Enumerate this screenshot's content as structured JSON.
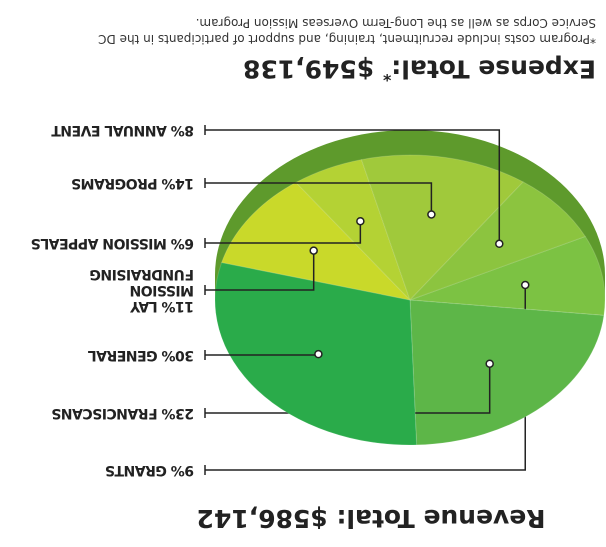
{
  "chart_data": {
    "type": "pie",
    "revenue_title": "Revenue Total: $586,142",
    "expense_label": "Expense Total:",
    "expense_marker": "*",
    "expense_value": "$549,138",
    "footnote": [
      "*Program costs include recruitment, training, and support of participants in the DC",
      "Service Corps as well as the Long-Term Overseas Mission Program."
    ],
    "categories": [
      "GRANTS",
      "FRANCISCANS",
      "GENERAL",
      "LAY MISSION FUNDRAISING",
      "MISSION APPEALS",
      "PROGRAMS",
      "ANNUAL EVENT"
    ],
    "values": [
      9,
      23,
      30,
      11,
      6,
      14,
      8
    ],
    "value_labels": [
      "9%",
      "23%",
      "30%",
      "11%",
      "6%",
      "14%",
      "8%"
    ],
    "colors": [
      "#7cc243",
      "#5db648",
      "#2aab4a",
      "#c9d92a",
      "#b4d234",
      "#a0c93b",
      "#8cc43f"
    ]
  }
}
